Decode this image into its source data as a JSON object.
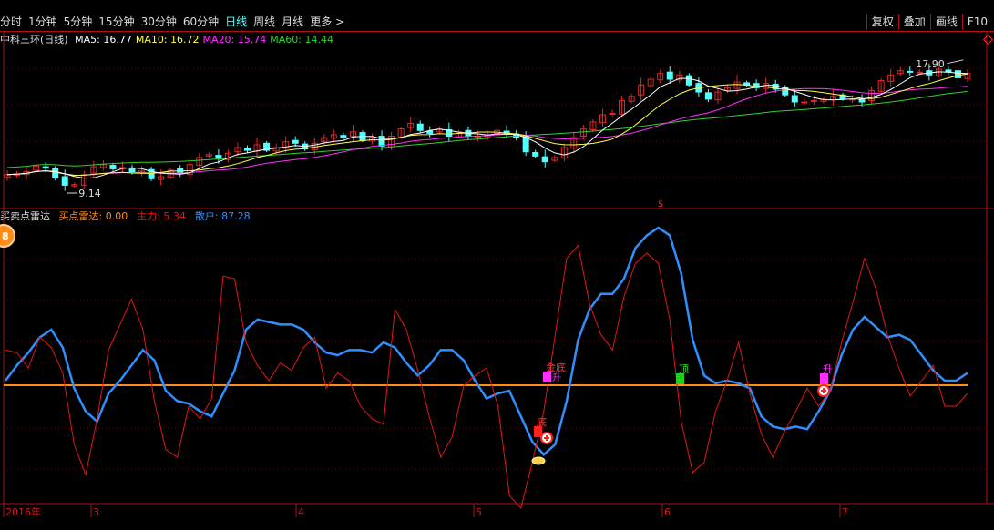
{
  "colors": {
    "background": "#000000",
    "frame": "#b01010",
    "up": "#e02828",
    "down": "#54ffff",
    "ma5": "#ffffff",
    "ma10": "#ffff50",
    "ma20": "#ff30ff",
    "ma60": "#30d030",
    "main_force": "#e01818",
    "retail": "#2f8fff",
    "zero_line": "#ff8c1a",
    "active_period": "#54ffff",
    "toolbar_text": "#dcdcdc"
  },
  "toolbar": {
    "periods": [
      {
        "label": "分时",
        "active": false
      },
      {
        "label": "1分钟",
        "active": false
      },
      {
        "label": "5分钟",
        "active": false
      },
      {
        "label": "15分钟",
        "active": false
      },
      {
        "label": "30分钟",
        "active": false
      },
      {
        "label": "60分钟",
        "active": false
      },
      {
        "label": "日线",
        "active": true
      },
      {
        "label": "周线",
        "active": false
      },
      {
        "label": "月线",
        "active": false
      },
      {
        "label": "更多 >",
        "active": false
      }
    ],
    "right_buttons": [
      "复权",
      "叠加",
      "画线",
      "F10"
    ]
  },
  "main_chart": {
    "title": "中科三环(日线)",
    "ma_labels": [
      {
        "name": "MA5:",
        "value": "16.77",
        "color": "#ffffff"
      },
      {
        "name": "MA10:",
        "value": "16.72",
        "color": "#ffff50"
      },
      {
        "name": "MA20:",
        "value": "15.74",
        "color": "#ff30ff"
      },
      {
        "name": "MA60:",
        "value": "14.44",
        "color": "#30d030"
      }
    ],
    "high_label": "17.90",
    "low_label": "9.14"
  },
  "indicator": {
    "title": "买卖点雷达",
    "labels": [
      {
        "name": "买点雷达:",
        "value": "0.00",
        "color": "#ff8c1a"
      },
      {
        "name": "主力:",
        "value": "5.34",
        "color": "#e01818"
      },
      {
        "name": "散户:",
        "value": "87.28",
        "color": "#2f8fff"
      }
    ],
    "badge": "8",
    "markers": [
      {
        "text": "金底",
        "color": "#ff3030"
      },
      {
        "text": "升",
        "color": "#ff30ff"
      },
      {
        "text": "底",
        "color": "#ff3030"
      },
      {
        "text": "顶",
        "color": "#30e030"
      },
      {
        "text": "升",
        "color": "#ff30ff"
      }
    ]
  },
  "time_axis": {
    "labels": [
      "2016年",
      "3",
      "4",
      "5",
      "6",
      "7"
    ]
  },
  "chart_data": [
    {
      "type": "candlestick",
      "title": "中科三环(日线)",
      "series": [
        {
          "name": "MA5",
          "last": 16.77
        },
        {
          "name": "MA10",
          "last": 16.72
        },
        {
          "name": "MA20",
          "last": 15.74
        },
        {
          "name": "MA60",
          "last": 14.44
        }
      ],
      "annotations": [
        {
          "text": "17.90",
          "kind": "high"
        },
        {
          "text": "9.14",
          "kind": "low"
        }
      ],
      "close": [
        10.3,
        10.35,
        10.5,
        10.9,
        10.75,
        10.05,
        9.55,
        9.6,
        10.3,
        10.85,
        11.0,
        10.7,
        10.8,
        10.5,
        10.55,
        10.0,
        10.15,
        10.6,
        10.35,
        11.0,
        11.5,
        11.7,
        11.4,
        11.8,
        12.2,
        12.0,
        12.4,
        12.0,
        12.2,
        12.6,
        12.5,
        12.1,
        12.5,
        12.9,
        13.1,
        12.9,
        13.3,
        12.7,
        12.9,
        12.3,
        13.0,
        13.5,
        13.9,
        13.4,
        13.2,
        13.5,
        13.0,
        13.3,
        13.0,
        13.0,
        13.1,
        13.4,
        13.2,
        12.9,
        11.9,
        11.6,
        11.2,
        11.5,
        12.2,
        12.9,
        13.5,
        14.0,
        14.5,
        14.6,
        15.5,
        15.8,
        16.6,
        17.0,
        17.4,
        17.0,
        17.3,
        16.6,
        16.1,
        15.6,
        16.1,
        16.4,
        16.8,
        16.6,
        16.4,
        16.7,
        16.3,
        15.9,
        15.4,
        15.4,
        15.5,
        15.6,
        15.8,
        15.6,
        15.6,
        15.4,
        16.2,
        16.9,
        17.3,
        17.6,
        17.5,
        17.5,
        17.3,
        17.7,
        17.5,
        17.1,
        17.4
      ]
    },
    {
      "type": "line",
      "title": "买卖点雷达",
      "series": [
        {
          "name": "主力",
          "last": 5.34
        },
        {
          "name": "散户",
          "last": 87.28
        },
        {
          "name": "买点雷达",
          "last": 0.0
        }
      ],
      "x": [
        "2016年",
        "3",
        "4",
        "5",
        "6",
        "7"
      ]
    }
  ]
}
